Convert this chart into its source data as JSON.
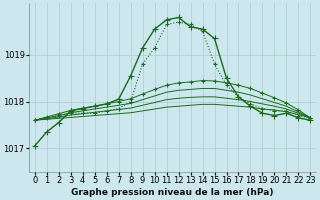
{
  "bg_color": "#cce8ee",
  "grid_color": "#aacccc",
  "line_color_dark": "#1a5c1a",
  "line_color_medium": "#2d7a2d",
  "title": "Graphe pression niveau de la mer (hPa)",
  "tick_fontsize": 6,
  "title_fontsize": 6.5,
  "xlim": [
    -0.5,
    23.5
  ],
  "ylim": [
    1016.5,
    1020.1
  ],
  "yticks": [
    1017,
    1018,
    1019
  ],
  "xticks": [
    0,
    1,
    2,
    3,
    4,
    5,
    6,
    7,
    8,
    9,
    10,
    11,
    12,
    13,
    14,
    15,
    16,
    17,
    18,
    19,
    20,
    21,
    22,
    23
  ],
  "series": [
    {
      "x": [
        0,
        1,
        2,
        3,
        4,
        5,
        6,
        7,
        8,
        9,
        10,
        11,
        12,
        13,
        14,
        15,
        16,
        17,
        18,
        19,
        20,
        21,
        22,
        23
      ],
      "y": [
        1017.05,
        1017.35,
        1017.55,
        1017.8,
        1017.85,
        1017.9,
        1017.95,
        1018.05,
        1018.55,
        1019.15,
        1019.55,
        1019.75,
        1019.8,
        1019.6,
        1019.55,
        1019.35,
        1018.5,
        1018.1,
        1017.9,
        1017.75,
        1017.7,
        1017.75,
        1017.65,
        1017.6
      ],
      "linestyle": "-",
      "marker": "+",
      "linewidth": 1.0,
      "markersize": 4,
      "color": "#1a6b1a"
    },
    {
      "x": [
        0,
        1,
        2,
        3,
        4,
        5,
        6,
        7,
        8,
        9,
        10,
        11,
        12,
        13,
        14,
        15,
        16,
        17,
        18,
        19,
        20,
        21,
        22,
        23
      ],
      "y": [
        1017.6,
        1017.65,
        1017.7,
        1017.75,
        1017.75,
        1017.75,
        1017.8,
        1017.85,
        1018.0,
        1018.8,
        1019.15,
        1019.65,
        1019.7,
        1019.65,
        1019.5,
        1018.8,
        1018.35,
        1018.1,
        1017.95,
        1017.85,
        1017.8,
        1017.8,
        1017.7,
        1017.65
      ],
      "linestyle": ":",
      "marker": "+",
      "linewidth": 0.8,
      "markersize": 3,
      "color": "#1a6b1a"
    },
    {
      "x": [
        0,
        1,
        2,
        3,
        4,
        5,
        6,
        7,
        8,
        9,
        10,
        11,
        12,
        13,
        14,
        15,
        16,
        17,
        18,
        19,
        20,
        21,
        22,
        23
      ],
      "y": [
        1017.6,
        1017.62,
        1017.64,
        1017.66,
        1017.68,
        1017.7,
        1017.72,
        1017.74,
        1017.76,
        1017.8,
        1017.84,
        1017.88,
        1017.9,
        1017.92,
        1017.94,
        1017.94,
        1017.92,
        1017.9,
        1017.88,
        1017.84,
        1017.82,
        1017.78,
        1017.72,
        1017.65
      ],
      "linestyle": "-",
      "marker": null,
      "linewidth": 0.7,
      "color": "#1a6b1a"
    },
    {
      "x": [
        0,
        1,
        2,
        3,
        4,
        5,
        6,
        7,
        8,
        9,
        10,
        11,
        12,
        13,
        14,
        15,
        16,
        17,
        18,
        19,
        20,
        21,
        22,
        23
      ],
      "y": [
        1017.6,
        1017.63,
        1017.67,
        1017.71,
        1017.74,
        1017.77,
        1017.8,
        1017.83,
        1017.86,
        1017.92,
        1017.98,
        1018.04,
        1018.07,
        1018.09,
        1018.1,
        1018.1,
        1018.07,
        1018.04,
        1018.0,
        1017.95,
        1017.9,
        1017.84,
        1017.75,
        1017.65
      ],
      "linestyle": "-",
      "marker": null,
      "linewidth": 0.7,
      "color": "#1a6b1a"
    },
    {
      "x": [
        0,
        1,
        2,
        3,
        4,
        5,
        6,
        7,
        8,
        9,
        10,
        11,
        12,
        13,
        14,
        15,
        16,
        17,
        18,
        19,
        20,
        21,
        22,
        23
      ],
      "y": [
        1017.6,
        1017.65,
        1017.7,
        1017.76,
        1017.8,
        1017.84,
        1017.88,
        1017.92,
        1017.96,
        1018.04,
        1018.12,
        1018.2,
        1018.24,
        1018.26,
        1018.28,
        1018.28,
        1018.24,
        1018.2,
        1018.14,
        1018.06,
        1017.98,
        1017.9,
        1017.78,
        1017.65
      ],
      "linestyle": "-",
      "marker": null,
      "linewidth": 0.7,
      "color": "#1a6b1a"
    },
    {
      "x": [
        0,
        1,
        2,
        3,
        4,
        5,
        6,
        7,
        8,
        9,
        10,
        11,
        12,
        13,
        14,
        15,
        16,
        17,
        18,
        19,
        20,
        21,
        22,
        23
      ],
      "y": [
        1017.6,
        1017.67,
        1017.74,
        1017.81,
        1017.86,
        1017.9,
        1017.95,
        1018.0,
        1018.06,
        1018.16,
        1018.26,
        1018.35,
        1018.4,
        1018.42,
        1018.45,
        1018.44,
        1018.4,
        1018.35,
        1018.28,
        1018.18,
        1018.08,
        1017.97,
        1017.82,
        1017.65
      ],
      "linestyle": "-",
      "marker": "+",
      "linewidth": 0.7,
      "markersize": 3,
      "color": "#1a6b1a"
    }
  ]
}
